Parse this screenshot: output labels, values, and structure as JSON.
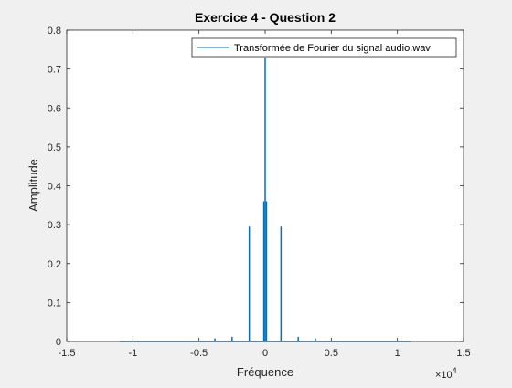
{
  "chart_data": {
    "type": "line",
    "title": "Exercice 4 - Question 2",
    "xlabel": "Fréquence",
    "ylabel": "Amplitude",
    "x_multiplier_label": "×10",
    "x_multiplier_exp": "4",
    "xlim": [
      -1.5,
      1.5
    ],
    "ylim": [
      0,
      0.8
    ],
    "xticks": [
      -1.5,
      -1,
      -0.5,
      0,
      0.5,
      1,
      1.5
    ],
    "xtick_labels": [
      "-1.5",
      "-1",
      "-0.5",
      "0",
      "0.5",
      "1",
      "1.5"
    ],
    "yticks": [
      0,
      0.1,
      0.2,
      0.3,
      0.4,
      0.5,
      0.6,
      0.7,
      0.8
    ],
    "ytick_labels": [
      "0",
      "0.1",
      "0.2",
      "0.3",
      "0.4",
      "0.5",
      "0.6",
      "0.7",
      "0.8"
    ],
    "grid": false,
    "legend_location": "top-right",
    "series": [
      {
        "name": "Transformée de Fourier du signal audio.wav",
        "color": "#0072BD",
        "x": [
          -1.1,
          -0.38,
          -0.25,
          -0.12,
          -0.01,
          0,
          0.01,
          0.12,
          0.25,
          0.38,
          1.1
        ],
        "y": [
          0.0,
          0.008,
          0.012,
          0.295,
          0.36,
          0.73,
          0.36,
          0.295,
          0.012,
          0.008,
          0.0
        ]
      }
    ]
  }
}
